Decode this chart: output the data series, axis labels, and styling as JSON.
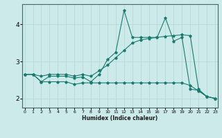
{
  "xlabel": "Humidex (Indice chaleur)",
  "background_color": "#cceaea",
  "line_color": "#1a7a6e",
  "grid_color": "#b8d8d8",
  "x_ticks": [
    0,
    1,
    2,
    3,
    4,
    5,
    6,
    7,
    8,
    9,
    10,
    11,
    12,
    13,
    14,
    15,
    16,
    17,
    18,
    19,
    20,
    21,
    22,
    23
  ],
  "y_ticks": [
    2,
    3,
    4
  ],
  "xlim": [
    -0.3,
    23.3
  ],
  "ylim": [
    1.75,
    4.55
  ],
  "line1_x": [
    0,
    1,
    2,
    3,
    4,
    5,
    6,
    7,
    8,
    9,
    10,
    11,
    12,
    13,
    14,
    15,
    16,
    17,
    18,
    19,
    20,
    21,
    22,
    23
  ],
  "line1_y": [
    2.65,
    2.65,
    2.45,
    2.6,
    2.6,
    2.6,
    2.55,
    2.58,
    2.45,
    2.65,
    3.05,
    3.25,
    4.38,
    3.65,
    3.65,
    3.65,
    3.65,
    4.18,
    3.55,
    3.65,
    2.25,
    2.22,
    2.05,
    2.0
  ],
  "line2_x": [
    0,
    1,
    2,
    3,
    4,
    5,
    6,
    7,
    8,
    9,
    10,
    11,
    12,
    13,
    14,
    15,
    16,
    17,
    18,
    19,
    20,
    21,
    22,
    23
  ],
  "line2_y": [
    2.65,
    2.65,
    2.6,
    2.65,
    2.65,
    2.65,
    2.6,
    2.65,
    2.6,
    2.75,
    2.9,
    3.1,
    3.3,
    3.5,
    3.58,
    3.62,
    3.65,
    3.68,
    3.7,
    3.72,
    3.7,
    2.25,
    2.05,
    2.0
  ],
  "line3_x": [
    0,
    1,
    2,
    3,
    4,
    5,
    6,
    7,
    8,
    9,
    10,
    11,
    12,
    13,
    14,
    15,
    16,
    17,
    18,
    19,
    20,
    21,
    22,
    23
  ],
  "line3_y": [
    2.65,
    2.65,
    2.45,
    2.45,
    2.45,
    2.45,
    2.38,
    2.42,
    2.42,
    2.42,
    2.42,
    2.42,
    2.42,
    2.42,
    2.42,
    2.42,
    2.42,
    2.42,
    2.42,
    2.42,
    2.35,
    2.2,
    2.05,
    2.0
  ]
}
